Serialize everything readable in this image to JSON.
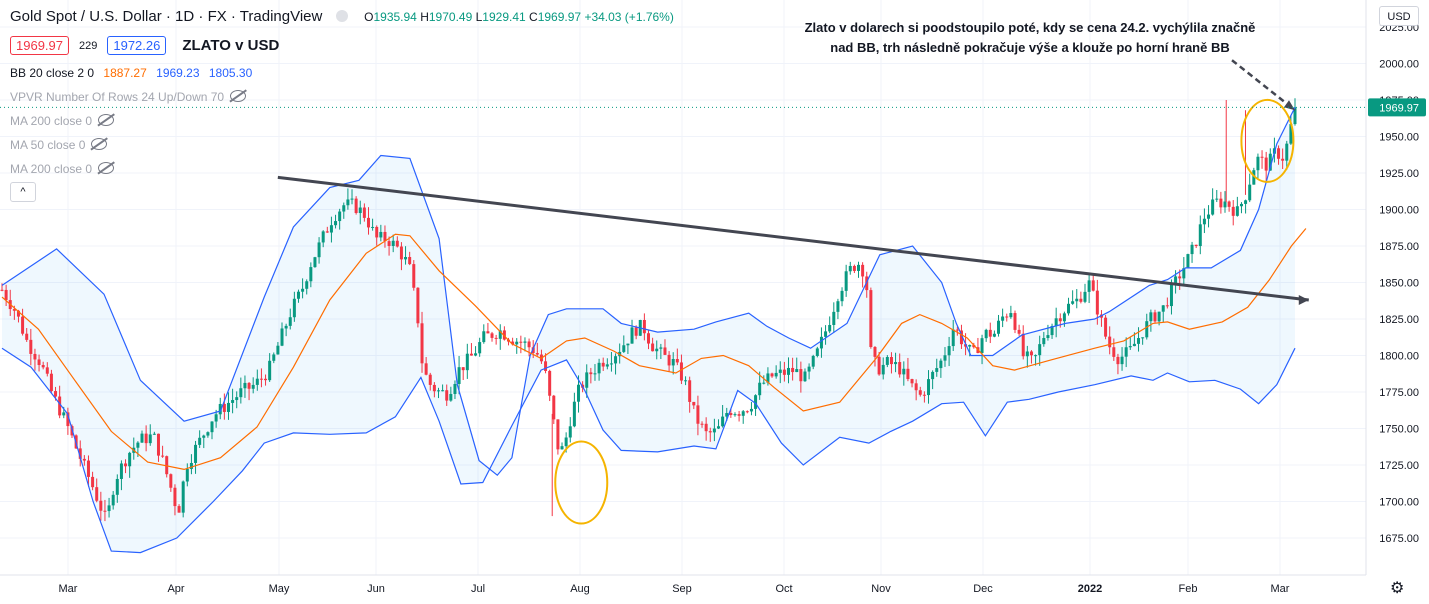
{
  "header": {
    "symbol": "Gold Spot / U.S. Dollar · 1D · FX · TradingView",
    "ohlc": {
      "o_label": "O",
      "o": "1935.94",
      "h_label": "H",
      "h": "1970.49",
      "l_label": "L",
      "l": "1929.41",
      "c_label": "C",
      "c": "1969.97",
      "change": "+34.03 (+1.76%)"
    },
    "bid": "1969.97",
    "spread": "229",
    "ask": "1972.26",
    "chart_title": "ZLATO v USD"
  },
  "indicators": {
    "bb": {
      "label": "BB 20 close 2 0",
      "basis": "1887.27",
      "upper": "1969.23",
      "lower": "1805.30"
    },
    "vpvr": "VPVR Number Of Rows 24 Up/Down 70",
    "ma1": "MA 200 close 0",
    "ma2": "MA 50 close 0",
    "ma3": "MA 200 close 0",
    "collapse": "^"
  },
  "annotation": "Zlato v dolarech si poodstoupilo poté, kdy se cena 24.2. vychýlila značně nad BB, trh následně pokračuje výše a klouže po horní hraně BB",
  "currency_button": "USD",
  "price_axis": {
    "ticks": [
      "2025.00",
      "2000.00",
      "1975.00",
      "1950.00",
      "1925.00",
      "1900.00",
      "1875.00",
      "1850.00",
      "1825.00",
      "1800.00",
      "1775.00",
      "1750.00",
      "1725.00",
      "1700.00",
      "1675.00"
    ],
    "current_label": "1969.97"
  },
  "time_axis": {
    "ticks": [
      "Mar",
      "Apr",
      "May",
      "Jun",
      "Jul",
      "Aug",
      "Sep",
      "Oct",
      "Nov",
      "Dec",
      "2022",
      "Feb",
      "Mar"
    ]
  },
  "colors": {
    "up": "#089981",
    "down": "#f23645",
    "bb_band": "#2962ff",
    "bb_basis": "#ff6d00",
    "trendline": "#434651",
    "ellipse": "#f5b400"
  },
  "chart_data": {
    "type": "candlestick",
    "ylim": [
      1660,
      2030
    ],
    "x_range": [
      "2021-02-22",
      "2022-03-04"
    ],
    "trendline": [
      [
        "2021-05-13",
        1922
      ],
      [
        "2022-03-08",
        1838
      ]
    ],
    "ellipses": [
      {
        "date": "2021-08-09",
        "price": 1713
      },
      {
        "date": "2022-02-24",
        "price": 1947
      }
    ],
    "bb_upper": [
      [
        0,
        1848
      ],
      [
        15,
        1873
      ],
      [
        28,
        1842
      ],
      [
        38,
        1783
      ],
      [
        50,
        1755
      ],
      [
        60,
        1762
      ],
      [
        72,
        1840
      ],
      [
        80,
        1888
      ],
      [
        90,
        1915
      ],
      [
        98,
        1920
      ],
      [
        104,
        1937
      ],
      [
        112,
        1935
      ],
      [
        120,
        1880
      ],
      [
        125,
        1780
      ],
      [
        131,
        1728
      ],
      [
        136,
        1718
      ],
      [
        140,
        1730
      ],
      [
        145,
        1800
      ],
      [
        150,
        1828
      ],
      [
        155,
        1832
      ],
      [
        165,
        1832
      ],
      [
        170,
        1822
      ],
      [
        180,
        1816
      ],
      [
        190,
        1818
      ],
      [
        196,
        1823
      ],
      [
        205,
        1829
      ],
      [
        210,
        1820
      ],
      [
        216,
        1812
      ],
      [
        222,
        1805
      ],
      [
        232,
        1822
      ],
      [
        241,
        1869
      ],
      [
        250,
        1875
      ],
      [
        258,
        1850
      ],
      [
        262,
        1822
      ],
      [
        266,
        1800
      ],
      [
        272,
        1800
      ],
      [
        280,
        1814
      ],
      [
        292,
        1822
      ],
      [
        300,
        1825
      ],
      [
        304,
        1830
      ],
      [
        315,
        1848
      ],
      [
        320,
        1852
      ],
      [
        325,
        1860
      ],
      [
        332,
        1860
      ],
      [
        340,
        1872
      ],
      [
        345,
        1900
      ],
      [
        350,
        1945
      ],
      [
        355,
        1970
      ]
    ],
    "bb_lower": [
      [
        0,
        1805
      ],
      [
        8,
        1792
      ],
      [
        18,
        1760
      ],
      [
        25,
        1700
      ],
      [
        30,
        1666
      ],
      [
        38,
        1665
      ],
      [
        48,
        1675
      ],
      [
        58,
        1700
      ],
      [
        66,
        1721
      ],
      [
        72,
        1740
      ],
      [
        80,
        1747
      ],
      [
        90,
        1746
      ],
      [
        100,
        1747
      ],
      [
        108,
        1758
      ],
      [
        115,
        1785
      ],
      [
        120,
        1755
      ],
      [
        126,
        1712
      ],
      [
        132,
        1713
      ],
      [
        140,
        1752
      ],
      [
        148,
        1790
      ],
      [
        155,
        1797
      ],
      [
        160,
        1776
      ],
      [
        165,
        1749
      ],
      [
        170,
        1735
      ],
      [
        180,
        1734
      ],
      [
        190,
        1738
      ],
      [
        196,
        1736
      ],
      [
        202,
        1776
      ],
      [
        207,
        1767
      ],
      [
        214,
        1740
      ],
      [
        220,
        1725
      ],
      [
        230,
        1744
      ],
      [
        238,
        1740
      ],
      [
        244,
        1748
      ],
      [
        250,
        1755
      ],
      [
        258,
        1767
      ],
      [
        264,
        1768
      ],
      [
        270,
        1745
      ],
      [
        276,
        1768
      ],
      [
        282,
        1770
      ],
      [
        290,
        1775
      ],
      [
        300,
        1780
      ],
      [
        310,
        1786
      ],
      [
        316,
        1783
      ],
      [
        320,
        1788
      ],
      [
        326,
        1782
      ],
      [
        333,
        1783
      ],
      [
        340,
        1777
      ],
      [
        345,
        1767
      ],
      [
        350,
        1780
      ],
      [
        355,
        1805
      ]
    ],
    "bb_basis": [
      [
        0,
        1840
      ],
      [
        10,
        1818
      ],
      [
        20,
        1783
      ],
      [
        30,
        1748
      ],
      [
        40,
        1727
      ],
      [
        50,
        1722
      ],
      [
        60,
        1730
      ],
      [
        70,
        1751
      ],
      [
        80,
        1792
      ],
      [
        90,
        1838
      ],
      [
        100,
        1870
      ],
      [
        108,
        1883
      ],
      [
        112,
        1882
      ],
      [
        120,
        1858
      ],
      [
        130,
        1834
      ],
      [
        140,
        1808
      ],
      [
        148,
        1798
      ],
      [
        155,
        1810
      ],
      [
        160,
        1812
      ],
      [
        168,
        1803
      ],
      [
        175,
        1793
      ],
      [
        185,
        1788
      ],
      [
        192,
        1798
      ],
      [
        198,
        1800
      ],
      [
        205,
        1793
      ],
      [
        212,
        1778
      ],
      [
        220,
        1762
      ],
      [
        230,
        1768
      ],
      [
        240,
        1798
      ],
      [
        247,
        1822
      ],
      [
        252,
        1828
      ],
      [
        258,
        1822
      ],
      [
        265,
        1812
      ],
      [
        272,
        1793
      ],
      [
        278,
        1790
      ],
      [
        288,
        1797
      ],
      [
        300,
        1805
      ],
      [
        308,
        1810
      ],
      [
        316,
        1822
      ],
      [
        320,
        1823
      ],
      [
        326,
        1818
      ],
      [
        335,
        1823
      ],
      [
        342,
        1833
      ],
      [
        348,
        1852
      ],
      [
        354,
        1875
      ],
      [
        358,
        1887
      ]
    ],
    "keypoints": [
      [
        0,
        1845
      ],
      [
        5,
        1830
      ],
      [
        9,
        1810
      ],
      [
        14,
        1795
      ],
      [
        18,
        1775
      ],
      [
        23,
        1755
      ],
      [
        28,
        1732
      ],
      [
        33,
        1710
      ],
      [
        38,
        1686
      ],
      [
        41,
        1715
      ],
      [
        46,
        1733
      ],
      [
        50,
        1742
      ],
      [
        55,
        1745
      ],
      [
        58,
        1730
      ],
      [
        61,
        1712
      ],
      [
        64,
        1692
      ],
      [
        67,
        1725
      ],
      [
        72,
        1742
      ],
      [
        77,
        1759
      ],
      [
        82,
        1767
      ],
      [
        87,
        1775
      ],
      [
        92,
        1780
      ],
      [
        97,
        1790
      ],
      [
        101,
        1810
      ],
      [
        105,
        1830
      ],
      [
        109,
        1845
      ],
      [
        112,
        1862
      ],
      [
        116,
        1878
      ],
      [
        120,
        1894
      ],
      [
        124,
        1903
      ],
      [
        128,
        1903
      ],
      [
        132,
        1896
      ],
      [
        136,
        1880
      ],
      [
        140,
        1880
      ],
      [
        144,
        1873
      ],
      [
        148,
        1861
      ],
      [
        151,
        1828
      ],
      [
        153,
        1790
      ],
      [
        156,
        1779
      ],
      [
        159,
        1775
      ],
      [
        162,
        1774
      ],
      [
        166,
        1790
      ],
      [
        171,
        1800
      ],
      [
        175,
        1812
      ],
      [
        181,
        1817
      ],
      [
        185,
        1812
      ],
      [
        190,
        1808
      ],
      [
        194,
        1803
      ],
      [
        197,
        1793
      ],
      [
        200,
        1760
      ],
      [
        202,
        1738
      ],
      [
        204,
        1735
      ],
      [
        207,
        1760
      ],
      [
        210,
        1778
      ],
      [
        214,
        1788
      ],
      [
        218,
        1796
      ],
      [
        222,
        1800
      ],
      [
        226,
        1808
      ],
      [
        230,
        1818
      ],
      [
        233,
        1820
      ],
      [
        236,
        1808
      ],
      [
        240,
        1800
      ],
      [
        244,
        1795
      ],
      [
        248,
        1783
      ],
      [
        252,
        1758
      ],
      [
        256,
        1746
      ],
      [
        260,
        1748
      ],
      [
        264,
        1763
      ],
      [
        268,
        1762
      ],
      [
        272,
        1766
      ],
      [
        276,
        1780
      ],
      [
        280,
        1786
      ],
      [
        284,
        1788
      ],
      [
        288,
        1790
      ],
      [
        292,
        1784
      ],
      [
        296,
        1800
      ],
      [
        300,
        1820
      ],
      [
        304,
        1843
      ],
      [
        308,
        1858
      ],
      [
        311,
        1864
      ],
      [
        314,
        1856
      ],
      [
        316,
        1797
      ],
      [
        319,
        1791
      ],
      [
        322,
        1795
      ],
      [
        326,
        1792
      ],
      [
        330,
        1780
      ],
      [
        334,
        1772
      ],
      [
        338,
        1786
      ],
      [
        342,
        1798
      ],
      [
        346,
        1820
      ],
      [
        350,
        1807
      ],
      [
        353,
        1800
      ],
      [
        357,
        1815
      ],
      [
        361,
        1815
      ],
      [
        363,
        1825
      ],
      [
        367,
        1832
      ],
      [
        371,
        1800
      ],
      [
        375,
        1795
      ],
      [
        379,
        1815
      ],
      [
        383,
        1825
      ],
      [
        387,
        1833
      ],
      [
        391,
        1838
      ],
      [
        395,
        1850
      ],
      [
        398,
        1833
      ],
      [
        402,
        1808
      ],
      [
        406,
        1798
      ],
      [
        410,
        1803
      ],
      [
        414,
        1815
      ],
      [
        418,
        1826
      ],
      [
        422,
        1832
      ],
      [
        426,
        1848
      ],
      [
        430,
        1862
      ],
      [
        433,
        1873
      ],
      [
        437,
        1895
      ],
      [
        441,
        1905
      ],
      [
        445,
        1905
      ],
      [
        449,
        1898
      ],
      [
        452,
        1910
      ],
      [
        456,
        1935
      ],
      [
        460,
        1930
      ],
      [
        463,
        1940
      ],
      [
        466,
        1935
      ],
      [
        470,
        1970
      ]
    ],
    "candle_count": 315
  }
}
